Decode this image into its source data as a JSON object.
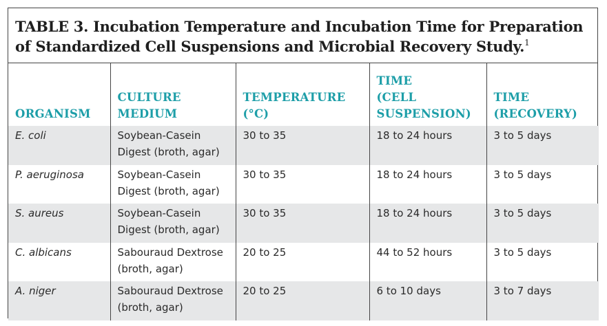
{
  "table": {
    "caption": "TABLE 3. Incubation Temperature and Incubation Time for Preparation of Standardized Cell Suspensions and Microbial Recovery Study.",
    "footnote_ref": "1",
    "headers": [
      [
        "ORGANISM"
      ],
      [
        "CULTURE",
        "MEDIUM"
      ],
      [
        "TEMPERATURE",
        "(°C)"
      ],
      [
        "TIME",
        "(CELL",
        "SUSPENSION)"
      ],
      [
        "TIME",
        "(RECOVERY)"
      ]
    ],
    "rows": [
      {
        "organism": "E. coli",
        "medium": [
          "Soybean-Casein",
          "Digest (broth, agar)"
        ],
        "temperature": "30 to 35",
        "time_suspension": "18 to 24 hours",
        "time_recovery": "3 to 5 days"
      },
      {
        "organism": "P. aeruginosa",
        "medium": [
          "Soybean-Casein",
          "Digest (broth, agar)"
        ],
        "temperature": "30 to 35",
        "time_suspension": "18 to 24 hours",
        "time_recovery": "3 to 5 days"
      },
      {
        "organism": "S. aureus",
        "medium": [
          "Soybean-Casein",
          "Digest (broth, agar)"
        ],
        "temperature": "30 to 35",
        "time_suspension": "18 to 24 hours",
        "time_recovery": "3 to 5 days"
      },
      {
        "organism": "C. albicans",
        "medium": [
          "Sabouraud Dextrose",
          "(broth, agar)"
        ],
        "temperature": "20 to 25",
        "time_suspension": "44 to 52 hours",
        "time_recovery": "3 to 5 days"
      },
      {
        "organism": "A. niger",
        "medium": [
          "Sabouraud Dextrose",
          "(broth, agar)"
        ],
        "temperature": "20 to 25",
        "time_suspension": "6 to 10 days",
        "time_recovery": "3 to 7 days"
      }
    ]
  }
}
